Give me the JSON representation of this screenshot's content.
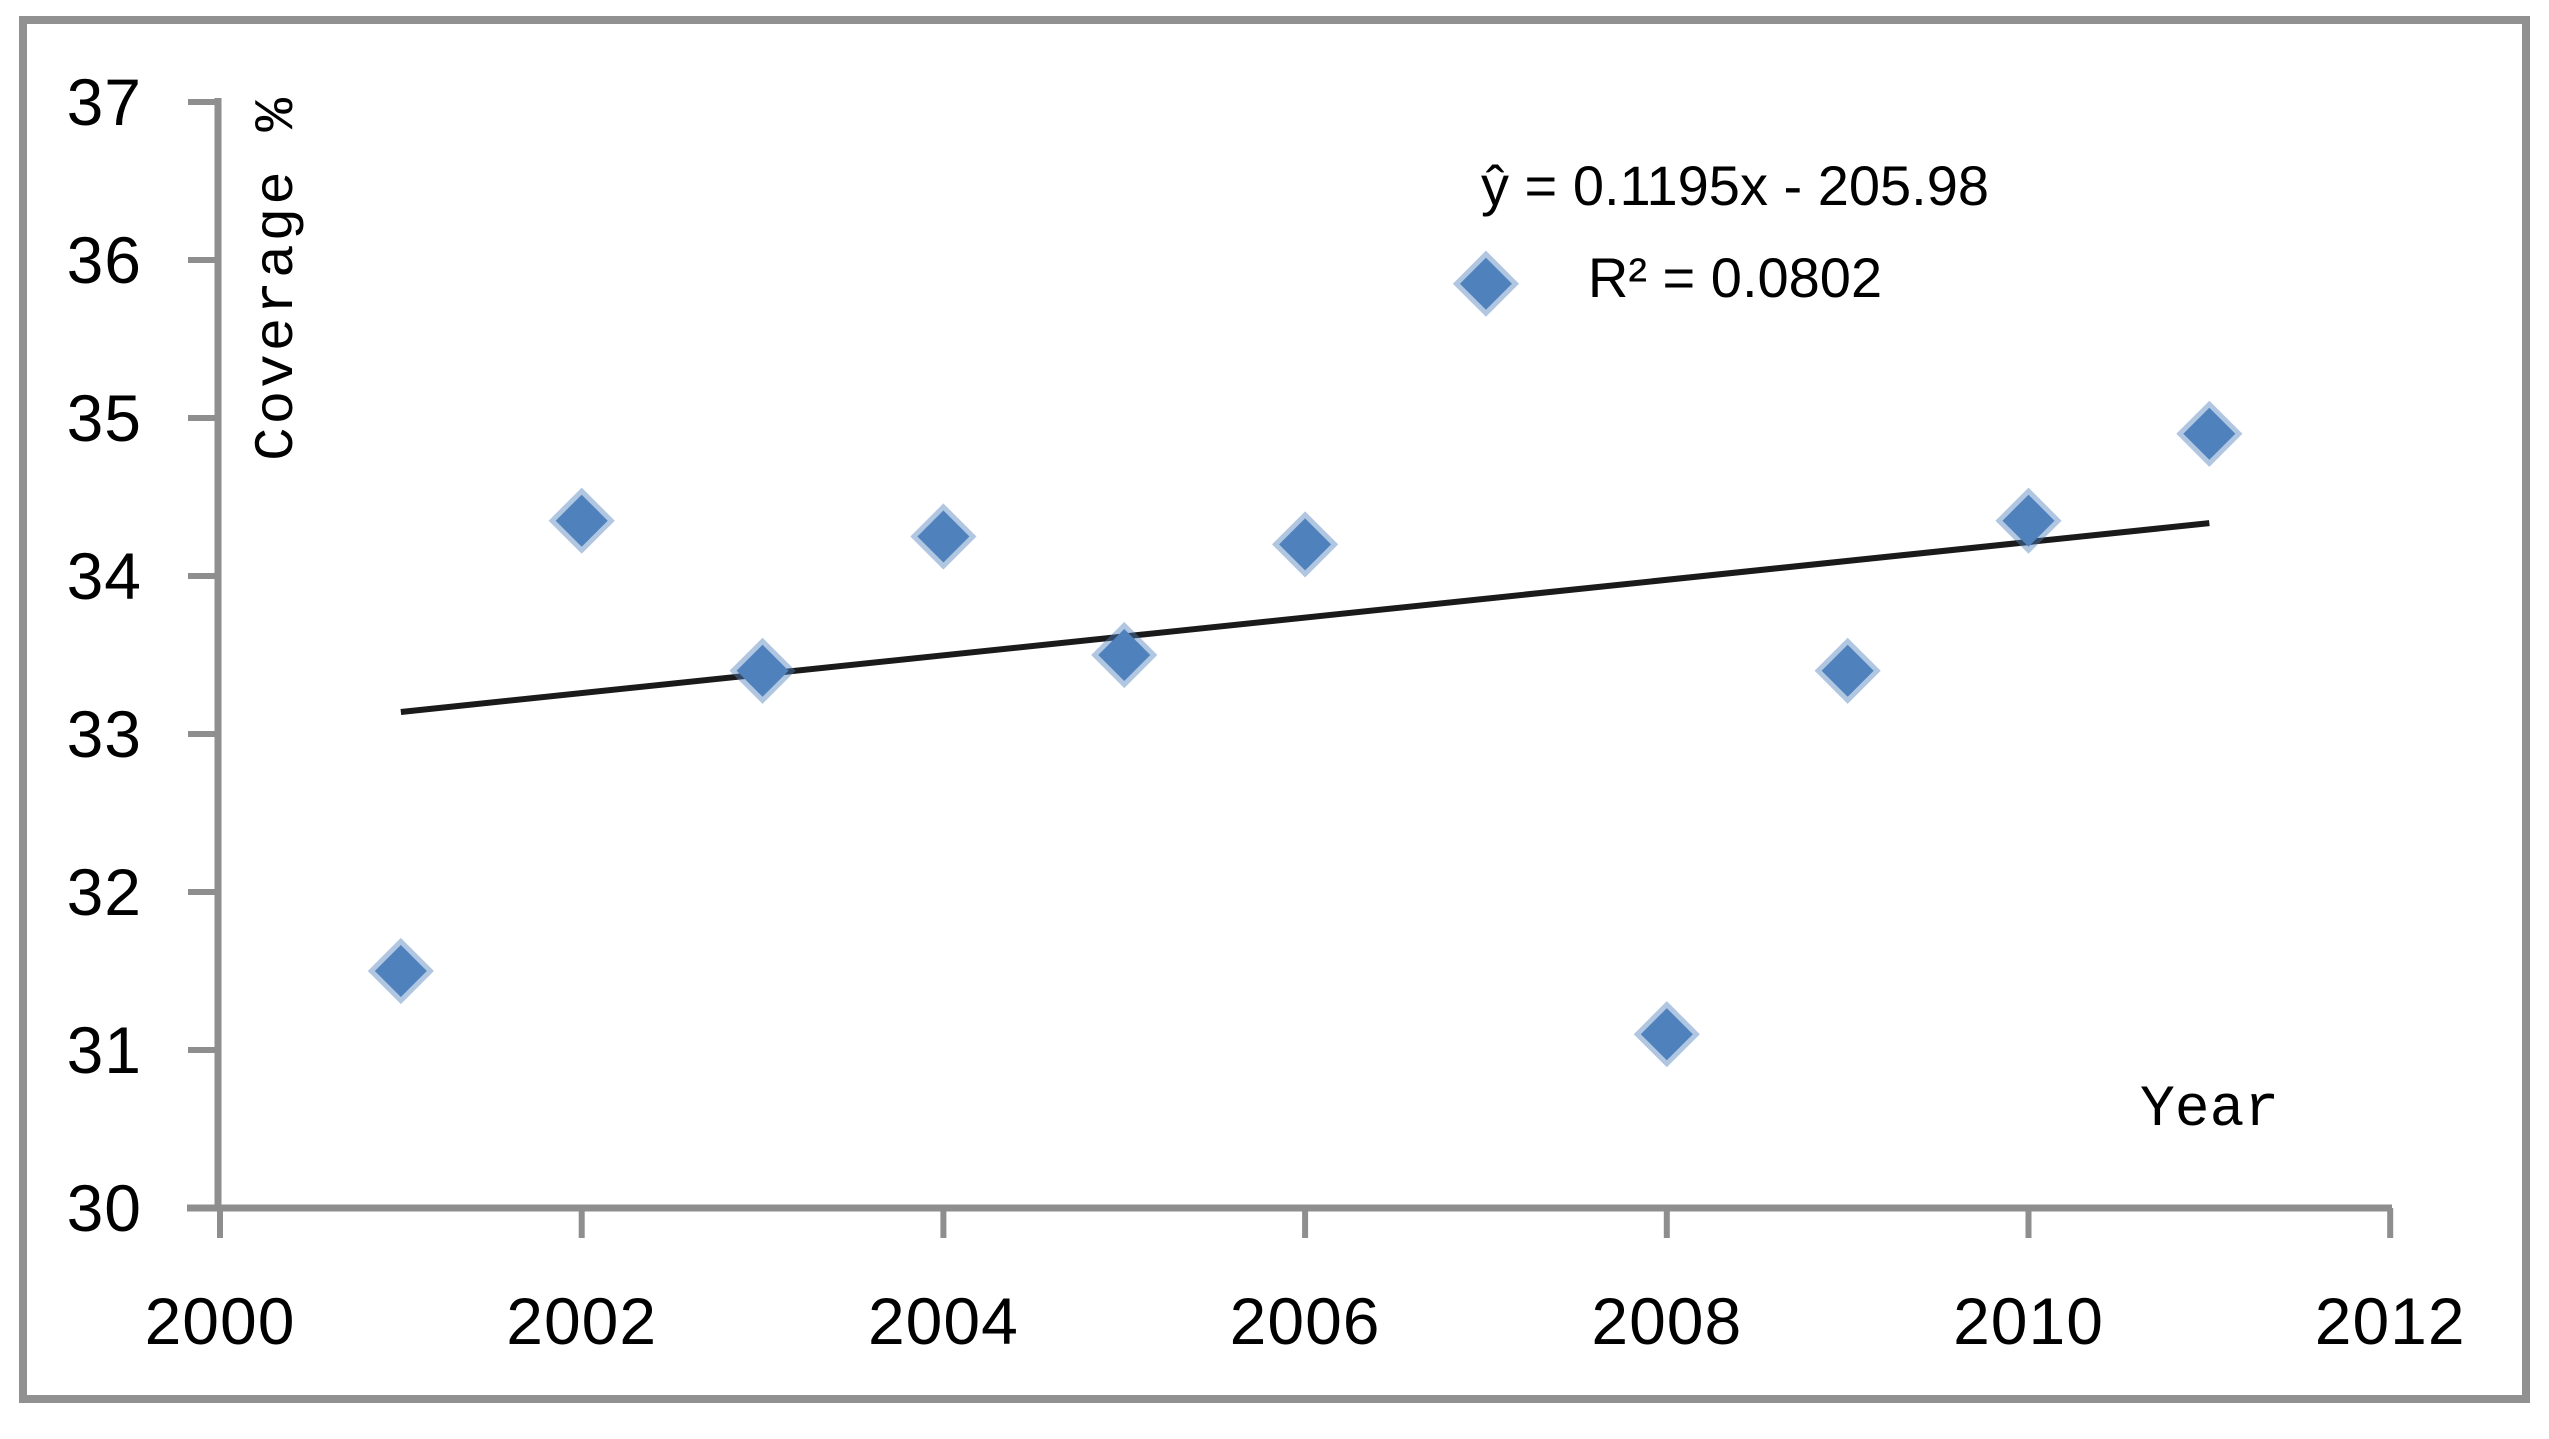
{
  "figure": {
    "background_color": "#ffffff",
    "border_color": "#919191",
    "axis_color": "#8e8e8e",
    "text_color": "#000000"
  },
  "chart_data": {
    "type": "scatter",
    "title": "",
    "xlabel": "Year",
    "ylabel": "Coverage %",
    "xlim": [
      2000,
      2012
    ],
    "ylim": [
      30,
      37
    ],
    "grid": false,
    "legend": null,
    "x_tick_labels": [
      "2000",
      "2002",
      "2004",
      "2006",
      "2008",
      "2010",
      "2012"
    ],
    "y_tick_labels": [
      "30",
      "31",
      "32",
      "33",
      "34",
      "35",
      "36",
      "37"
    ],
    "series": [
      {
        "name": "Coverage",
        "marker": {
          "shape": "diamond",
          "color": "#4f81bd"
        },
        "x": [
          2001,
          2002,
          2003,
          2004,
          2005,
          2006,
          2007,
          2008,
          2009,
          2010,
          2011
        ],
        "y": [
          31.5,
          34.35,
          33.4,
          34.25,
          33.5,
          34.2,
          35.85,
          31.1,
          33.4,
          34.35,
          34.9
        ]
      }
    ],
    "trendline": {
      "slope": 0.1195,
      "intercept": -205.98,
      "x_start": 2001,
      "x_end": 2011,
      "color": "#1a1a1a",
      "equation_label": "ŷ = 0.1195x - 205.98",
      "r_squared_label": "R² = 0.0802"
    }
  }
}
